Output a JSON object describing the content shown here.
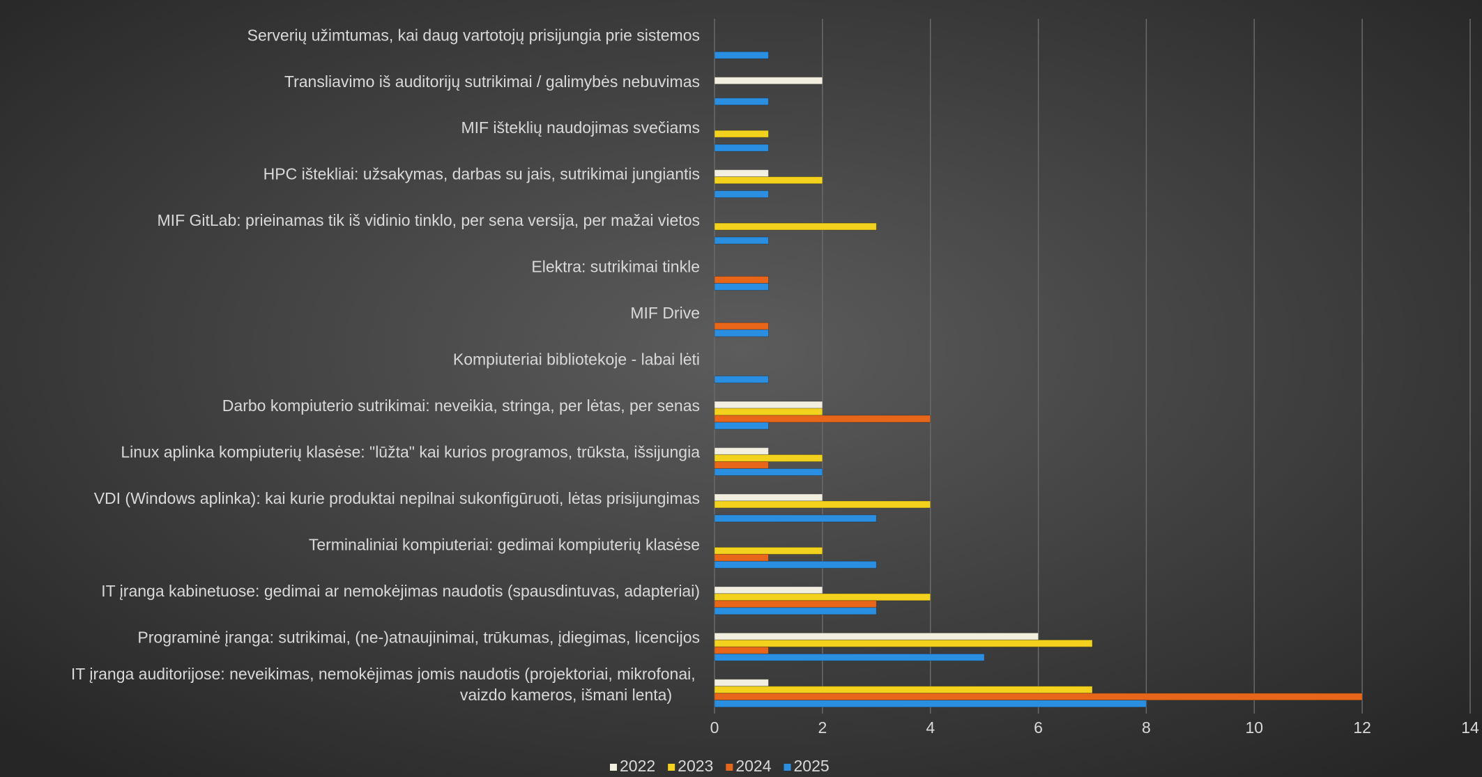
{
  "chart_data": {
    "type": "bar",
    "orientation": "horizontal",
    "categories": [
      "Serverių užimtumas, kai daug vartotojų prisijungia prie sistemos",
      "Transliavimo iš auditorijų sutrikimai / galimybės nebuvimas",
      "MIF išteklių naudojimas svečiams",
      "HPC ištekliai: užsakymas, darbas su jais, sutrikimai jungiantis",
      "MIF GitLab: prieinamas tik iš vidinio tinklo, per sena versija, per mažai vietos",
      "Elektra: sutrikimai tinkle",
      "MIF Drive",
      "Kompiuteriai bibliotekoje - labai lėti",
      "Darbo kompiuterio sutrikimai: neveikia, stringa, per lėtas, per senas",
      "Linux aplinka kompiuterių klasėse: \"lūžta\" kai kurios programos, trūksta, išsijungia",
      "VDI (Windows aplinka): kai kurie produktai nepilnai sukonfigūruoti, lėtas prisijungimas",
      "Terminaliniai kompiuteriai: gedimai kompiuterių klasėse",
      "IT įranga kabinetuose: gedimai ar nemokėjimas naudotis (spausdintuvas, adapteriai)",
      "Programinė įranga: sutrikimai, (ne-)atnaujinimai, trūkumas, įdiegimas, licencijos",
      "IT įranga auditorijose: neveikimas, nemokėjimas jomis naudotis (projektoriai, mikrofonai, vaizdo kameros, išmani lenta)"
    ],
    "series": [
      {
        "name": "2022",
        "color": "#f2efe0",
        "values": [
          0,
          2,
          0,
          1,
          0,
          0,
          0,
          0,
          2,
          1,
          2,
          0,
          2,
          6,
          1
        ]
      },
      {
        "name": "2023",
        "color": "#f2d21c",
        "values": [
          0,
          0,
          1,
          2,
          3,
          0,
          0,
          0,
          2,
          2,
          4,
          2,
          4,
          7,
          7
        ]
      },
      {
        "name": "2024",
        "color": "#e8661a",
        "values": [
          0,
          0,
          0,
          0,
          0,
          1,
          1,
          0,
          4,
          1,
          0,
          1,
          3,
          1,
          12
        ]
      },
      {
        "name": "2025",
        "color": "#2a8fe0",
        "values": [
          1,
          1,
          1,
          1,
          1,
          1,
          1,
          1,
          1,
          2,
          3,
          3,
          3,
          5,
          8
        ]
      }
    ],
    "xlim": [
      0,
      14
    ],
    "xticks": [
      0,
      2,
      4,
      6,
      8,
      10,
      12,
      14
    ],
    "grid": true,
    "legend": "bottom"
  }
}
